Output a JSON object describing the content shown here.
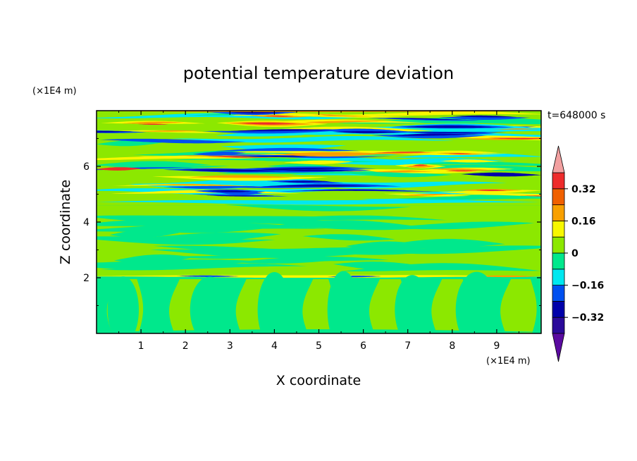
{
  "chart_data": {
    "type": "heatmap",
    "title": "potential temperature deviation",
    "xlabel": "X coordinate",
    "ylabel": "Z coordinate",
    "x_unit": "(×1E4 m)",
    "y_unit": "(×1E4 m)",
    "time_label": "t=648000 s",
    "xlim": [
      0,
      10
    ],
    "ylim": [
      0,
      8
    ],
    "x_ticks": [
      "1",
      "2",
      "3",
      "4",
      "5",
      "6",
      "7",
      "8",
      "9"
    ],
    "y_ticks": [
      "2",
      "4",
      "6"
    ],
    "colorbar": {
      "levels": [
        -0.4,
        -0.32,
        -0.24,
        -0.16,
        -0.08,
        0,
        0.08,
        0.16,
        0.24,
        0.32,
        0.4
      ],
      "tick_labels": [
        "0.32",
        "0.16",
        "0",
        "−0.16",
        "−0.32"
      ],
      "tick_values": [
        0.32,
        0.16,
        0,
        -0.16,
        -0.32
      ],
      "colors": [
        "#5a0aa0",
        "#2a0a9a",
        "#0000aa",
        "#0050f0",
        "#00e8f0",
        "#00e88c",
        "#8ce800",
        "#f8f800",
        "#f8a000",
        "#f06000",
        "#ee2b2b",
        "#f2a0a0"
      ]
    }
  }
}
